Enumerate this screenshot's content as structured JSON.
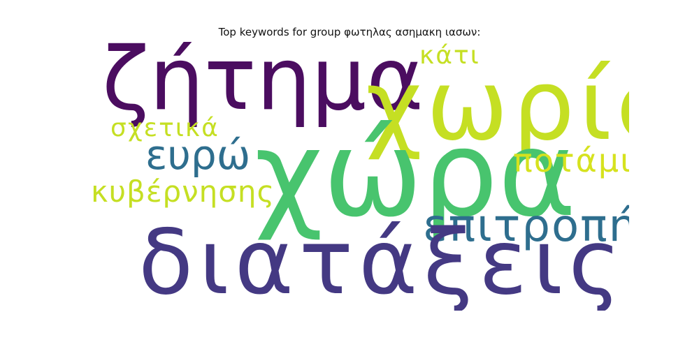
{
  "title": "Top keywords for group φωτηλας ασημακη ιασων:",
  "words": [
    {
      "text": "ζήτημα",
      "color": "#4b0d60"
    },
    {
      "text": "χωρίς",
      "color": "#c5df23"
    },
    {
      "text": "κάτι",
      "color": "#c5df23"
    },
    {
      "text": "σχετικά",
      "color": "#c5df23"
    },
    {
      "text": "ευρώ",
      "color": "#2e6e8e"
    },
    {
      "text": "χώρα",
      "color": "#48c46e"
    },
    {
      "text": "ποτάμι",
      "color": "#d6e21e"
    },
    {
      "text": "κυβέρνησης",
      "color": "#c5df23"
    },
    {
      "text": "επιτροπή",
      "color": "#2e6e8e"
    },
    {
      "text": "διατάξεις",
      "color": "#443983"
    }
  ]
}
